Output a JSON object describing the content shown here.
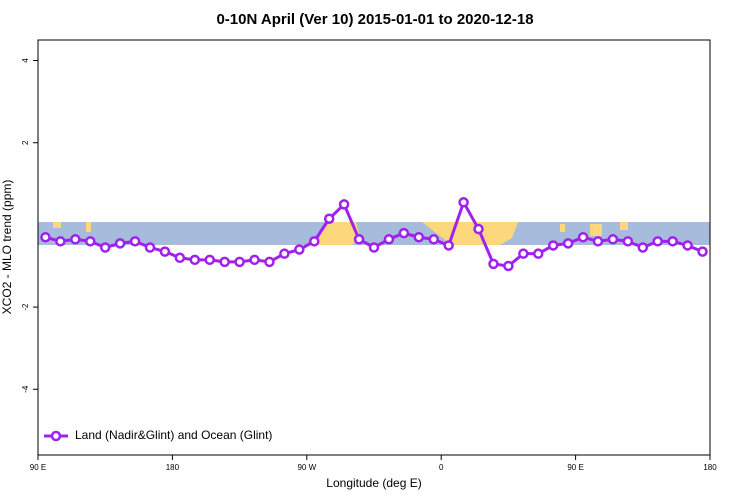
{
  "chart_data": {
    "type": "line",
    "title": "0-10N April (Ver 10)   2015-01-01 to 2020-12-18",
    "x_label": "Longitude (deg E)",
    "y_label": "XCO2 - MLO trend (ppm)",
    "x": [
      95,
      105,
      115,
      125,
      135,
      145,
      155,
      165,
      175,
      185,
      195,
      205,
      215,
      225,
      235,
      245,
      255,
      265,
      275,
      285,
      295,
      305,
      315,
      325,
      335,
      345,
      355,
      365,
      375,
      385,
      395,
      405,
      415,
      425,
      435,
      445,
      455,
      465,
      475,
      485,
      495,
      505,
      515,
      525,
      535
    ],
    "series": [
      {
        "name": "Land (Nadir&Glint) and Ocean (Glint)",
        "color": "#a020f0",
        "values": [
          -0.3,
          -0.4,
          -0.35,
          -0.4,
          -0.55,
          -0.45,
          -0.4,
          -0.55,
          -0.65,
          -0.8,
          -0.85,
          -0.85,
          -0.9,
          -0.9,
          -0.85,
          -0.9,
          -0.7,
          -0.6,
          -0.4,
          0.15,
          0.5,
          -0.35,
          -0.55,
          -0.35,
          -0.2,
          -0.3,
          -0.35,
          -0.5,
          0.55,
          -0.1,
          -0.95,
          -1.0,
          -0.7,
          -0.7,
          -0.5,
          -0.45,
          -0.3,
          -0.4,
          -0.35,
          -0.4,
          -0.55,
          -0.4,
          -0.4,
          -0.5,
          -0.65
        ]
      }
    ],
    "xlim": [
      90,
      540
    ],
    "xticks": [
      {
        "value": 90,
        "label": "90 E"
      },
      180,
      {
        "value": 270,
        "label": "90 W"
      },
      {
        "value": 360,
        "label": "0"
      },
      {
        "value": 450,
        "label": "90 E"
      },
      {
        "value": 540,
        "label": "180"
      }
    ],
    "ylim": [
      -5.6,
      4.5
    ],
    "yticks": [
      -4,
      -2,
      2,
      4
    ],
    "legend": "bottom-left"
  }
}
